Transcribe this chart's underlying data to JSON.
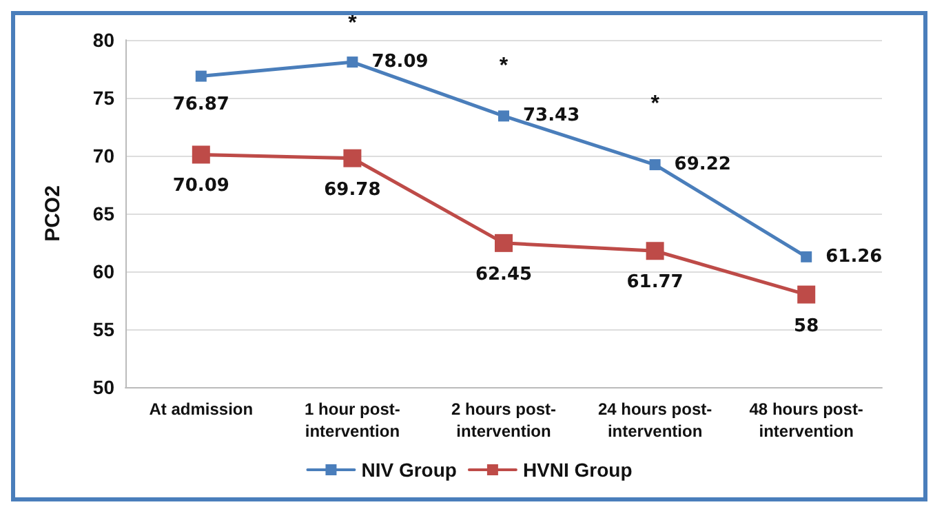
{
  "chart_data": {
    "type": "line",
    "ylabel": "PCO2",
    "categories": [
      "At admission",
      "1 hour post-intervention",
      "2 hours post-intervention",
      "24 hours post-intervention",
      "48 hours post-intervention"
    ],
    "series": [
      {
        "name": "NIV Group",
        "color": "#4a7ebb",
        "values": [
          76.87,
          78.09,
          73.43,
          69.22,
          61.26
        ]
      },
      {
        "name": "HVNI Group",
        "color": "#be4b48",
        "values": [
          70.09,
          69.78,
          62.45,
          61.77,
          58
        ]
      }
    ],
    "ylim": [
      50,
      80
    ],
    "yticks": [
      50,
      55,
      60,
      65,
      70,
      75,
      80
    ],
    "grid": "y",
    "legend": "bottom",
    "marker": "square",
    "line_style": "solid",
    "data_labels": true,
    "annotations": [
      "*",
      "*",
      "*"
    ]
  }
}
